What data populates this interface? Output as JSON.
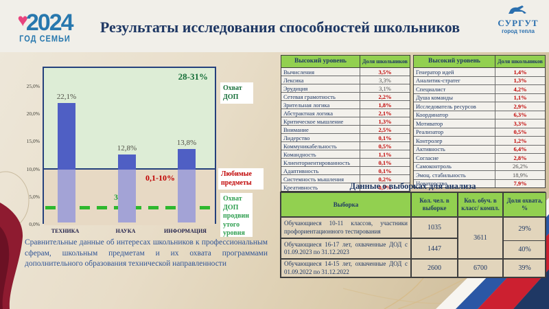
{
  "header": {
    "year_logo": {
      "year": "2024",
      "subtitle": "ГОД СЕМЬИ"
    },
    "title": "Результаты исследования способностей школьников",
    "city_logo": {
      "name": "СУРГУТ",
      "tagline": "город тепла"
    }
  },
  "chart_data": {
    "type": "bar",
    "categories": [
      "ТЕХНИКА",
      "НАУКА",
      "ИНФОРМАЦИЯ"
    ],
    "values": [
      22.1,
      12.8,
      13.8
    ],
    "value_labels": [
      "22,1%",
      "12,8%",
      "13,8%"
    ],
    "y_ticks": {
      "labels": [
        "25,0%",
        "20,0%",
        "15,0%",
        "10,0%",
        "5,0%",
        "0,0%"
      ],
      "values": [
        25,
        20,
        15,
        10,
        5,
        0
      ]
    },
    "ylim": [
      0,
      28.5
    ],
    "grid": false,
    "legend": "none",
    "zones": [
      {
        "label": "28-31%",
        "from": 10,
        "to": 28.5,
        "color": "#ddedd6",
        "label_color": "#156e38"
      },
      {
        "label": "0,1-10%",
        "from": 0,
        "to": 10,
        "color": "#e7d9c4",
        "label_color": "#c00000"
      }
    ],
    "reference_line": {
      "value": 3,
      "label": "3%",
      "color": "#2eb82e"
    },
    "side_labels": [
      {
        "text": "Охват ДОП",
        "color": "#156e38"
      },
      {
        "text": "Любимые предметы",
        "color": "#c00000"
      },
      {
        "text": "Охват ДОП продвинутого уровня",
        "color": "#2e9e4f"
      }
    ],
    "bar_color": "#4f5fc4"
  },
  "caption": "Сравнительные данные об интересах школьников к профессиональным сферам, школьным предметам и их охвата программами дополнительного образования технической направленности",
  "table1": {
    "headers": [
      "Высокий уровень",
      "Доля школьников"
    ],
    "rows": [
      {
        "label": "Вычисления",
        "value": "3,5%"
      },
      {
        "label": "Лексика",
        "value": "3,3%",
        "muted": true
      },
      {
        "label": "Эрудиция",
        "value": "3,1%",
        "muted": true
      },
      {
        "label": "Сетевая грамотность",
        "value": "2,2%"
      },
      {
        "label": "Зрительная логика",
        "value": "1,8%"
      },
      {
        "label": "Абстрактная логика",
        "value": "2,1%"
      },
      {
        "label": "Критическое мышление",
        "value": "1,3%"
      },
      {
        "label": "Внимание",
        "value": "2,5%"
      },
      {
        "label": "Лидерство",
        "value": "0,1%"
      },
      {
        "label": "Коммуникабельность",
        "value": "0,5%"
      },
      {
        "label": "Командность",
        "value": "1,1%"
      },
      {
        "label": "Клиенториентированность",
        "value": "0,1%"
      },
      {
        "label": "Адаптивность",
        "value": "0,1%"
      },
      {
        "label": "Системность мышления",
        "value": "0,2%"
      },
      {
        "label": "Креативность",
        "value": "0,7%"
      }
    ]
  },
  "table2": {
    "headers": [
      "Высокий уровень",
      "Доля школьников"
    ],
    "rows": [
      {
        "label": "Генератор идей",
        "value": "1,4%"
      },
      {
        "label": "Аналитик-стратег",
        "value": "1,3%"
      },
      {
        "label": "Специалист",
        "value": "4,2%"
      },
      {
        "label": "Душа команды",
        "value": "1,1%"
      },
      {
        "label": "Исследователь ресурсов",
        "value": "2,9%"
      },
      {
        "label": "Координатор",
        "value": "6,3%"
      },
      {
        "label": "Мотиватор",
        "value": "3,3%"
      },
      {
        "label": "Реализатор",
        "value": "0,5%"
      },
      {
        "label": "Контролер",
        "value": "1,2%"
      },
      {
        "label": "Активность",
        "value": "6,4%"
      },
      {
        "label": "Согласие",
        "value": "2,8%"
      },
      {
        "label": "Самоконтроль",
        "value": "26,2%",
        "muted": true
      },
      {
        "label": "Эмоц. стабильность",
        "value": "18,9%",
        "muted": true
      },
      {
        "label": "Новаторство",
        "value": "7,9%"
      }
    ]
  },
  "samples_table": {
    "title": "Данные о выборках для анализа",
    "headers": [
      "Выборка",
      "Кол. чел. в выборке",
      "Кол. обуч. в класс/ компл.",
      "Доля охвата, %"
    ],
    "rows": [
      {
        "sample": "Обучающиеся 10-11 классов, участники профориентационного тестирования",
        "count": "1035",
        "class_count": "3611",
        "share": "29%"
      },
      {
        "sample": "Обучающиеся 16-17 лет, охваченные ДОД с 01.09.2023 по 31.12.2023",
        "count": "1447",
        "share": "40%"
      },
      {
        "sample": "Обучающиеся 14-15 лет, охваченные ДОД с 01.09.2022 по 31.12.2022",
        "count": "2600",
        "class_count": "6700",
        "share": "39%"
      }
    ]
  }
}
